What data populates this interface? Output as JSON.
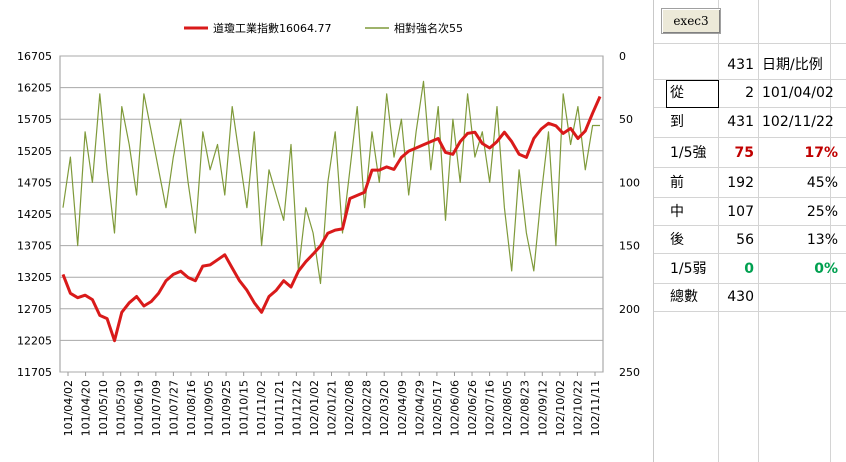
{
  "button": {
    "label": "exec3"
  },
  "legend": [
    {
      "label": "道瓊工業指數16064.77",
      "color": "#d91a1a"
    },
    {
      "label": "相對強名次55",
      "color": "#7f9a3a"
    }
  ],
  "chart_data": {
    "type": "line",
    "left_axis": {
      "ticks": [
        "16705",
        "16205",
        "15705",
        "15205",
        "14705",
        "14205",
        "13705",
        "13205",
        "12705",
        "12205",
        "11705"
      ],
      "min": 11705,
      "max": 16705
    },
    "right_axis": {
      "ticks": [
        "0",
        "50",
        "100",
        "150",
        "200",
        "250"
      ],
      "min": 0,
      "max": 250,
      "inverted": true
    },
    "x_labels": [
      "101/04/02",
      "101/04/20",
      "101/05/10",
      "101/05/30",
      "101/06/19",
      "101/07/09",
      "101/07/27",
      "101/08/16",
      "101/09/05",
      "101/09/25",
      "101/10/15",
      "101/11/02",
      "101/11/21",
      "101/12/12",
      "102/01/02",
      "102/01/21",
      "102/02/08",
      "102/02/28",
      "102/03/20",
      "102/04/09",
      "102/04/29",
      "102/05/17",
      "102/06/06",
      "102/06/26",
      "102/07/16",
      "102/08/05",
      "102/08/23",
      "102/09/12",
      "102/10/02",
      "102/10/22",
      "102/11/11"
    ],
    "grid": true,
    "series": [
      {
        "name": "道瓊工業指數16064.77",
        "axis": "left",
        "values": [
          13250,
          12950,
          12880,
          12920,
          12850,
          12600,
          12550,
          12200,
          12650,
          12800,
          12900,
          12750,
          12820,
          12950,
          13150,
          13250,
          13300,
          13200,
          13150,
          13380,
          13400,
          13480,
          13560,
          13350,
          13150,
          13000,
          12800,
          12650,
          12900,
          13000,
          13150,
          13050,
          13300,
          13450,
          13570,
          13700,
          13900,
          13950,
          13970,
          14450,
          14500,
          14550,
          14900,
          14900,
          14950,
          14910,
          15100,
          15200,
          15250,
          15300,
          15350,
          15400,
          15180,
          15150,
          15350,
          15480,
          15500,
          15320,
          15250,
          15350,
          15500,
          15350,
          15150,
          15100,
          15400,
          15550,
          15640,
          15600,
          15480,
          15560,
          15400,
          15520,
          15800,
          16064.77
        ]
      },
      {
        "name": "相對強名次55",
        "axis": "right",
        "values": [
          120,
          80,
          150,
          60,
          100,
          30,
          90,
          140,
          40,
          70,
          110,
          30,
          60,
          90,
          120,
          80,
          50,
          100,
          140,
          60,
          90,
          70,
          110,
          40,
          80,
          120,
          60,
          150,
          90,
          110,
          130,
          70,
          170,
          120,
          140,
          180,
          100,
          60,
          140,
          90,
          40,
          120,
          60,
          100,
          30,
          80,
          50,
          110,
          60,
          20,
          90,
          40,
          130,
          50,
          100,
          30,
          80,
          60,
          100,
          40,
          120,
          170,
          90,
          140,
          170,
          110,
          60,
          150,
          30,
          70,
          40,
          90,
          55,
          55
        ]
      }
    ]
  },
  "table": {
    "header": {
      "count": "431",
      "label": "日期/比例"
    },
    "rows": [
      {
        "name": "從",
        "count": "2",
        "value": "101/04/02",
        "style": "normal"
      },
      {
        "name": "到",
        "count": "431",
        "value": "102/11/22",
        "style": "normal"
      },
      {
        "name": "1/5強",
        "count": "75",
        "value": "17%",
        "style": "red"
      },
      {
        "name": "前",
        "count": "192",
        "value": "45%",
        "style": "normal"
      },
      {
        "name": "中",
        "count": "107",
        "value": "25%",
        "style": "normal"
      },
      {
        "name": "後",
        "count": "56",
        "value": "13%",
        "style": "normal"
      },
      {
        "name": "1/5弱",
        "count": "0",
        "value": "0%",
        "style": "green"
      },
      {
        "name": "總數",
        "count": "430",
        "value": "",
        "style": "normal"
      }
    ]
  }
}
